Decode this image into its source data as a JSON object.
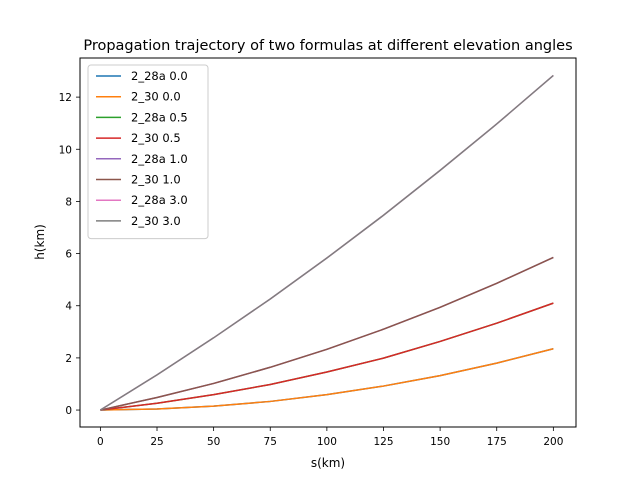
{
  "chart_data": {
    "type": "line",
    "title": "Propagation trajectory of two formulas at different elevation angles",
    "xlabel": "s(km)",
    "ylabel": "h(km)",
    "xlim": [
      -9,
      210
    ],
    "ylim": [
      -0.65,
      13.5
    ],
    "xticks": [
      0,
      25,
      50,
      75,
      100,
      125,
      150,
      175,
      200
    ],
    "yticks": [
      0,
      2,
      4,
      6,
      8,
      10,
      12
    ],
    "grid": false,
    "legend_position": "top-left",
    "x": [
      0,
      25,
      50,
      75,
      100,
      125,
      150,
      175,
      200
    ],
    "series": [
      {
        "name": "2_28a 0.0",
        "color": "#1f77b4",
        "values": [
          0,
          0.04,
          0.15,
          0.33,
          0.59,
          0.92,
          1.32,
          1.8,
          2.35
        ]
      },
      {
        "name": "2_30 0.0",
        "color": "#ff7f0e",
        "values": [
          0,
          0.04,
          0.15,
          0.33,
          0.59,
          0.92,
          1.32,
          1.8,
          2.35
        ]
      },
      {
        "name": "2_28a 0.5",
        "color": "#2ca02c",
        "values": [
          0,
          0.26,
          0.59,
          0.98,
          1.46,
          1.99,
          2.63,
          3.33,
          4.1
        ]
      },
      {
        "name": "2_30 0.5",
        "color": "#d62728",
        "values": [
          0,
          0.26,
          0.59,
          0.98,
          1.46,
          1.99,
          2.63,
          3.33,
          4.1
        ]
      },
      {
        "name": "2_28a 1.0",
        "color": "#9467bd",
        "values": [
          0,
          0.48,
          1.02,
          1.64,
          2.33,
          3.1,
          3.94,
          4.86,
          5.85
        ]
      },
      {
        "name": "2_30 1.0",
        "color": "#8c564b",
        "values": [
          0,
          0.48,
          1.02,
          1.64,
          2.33,
          3.1,
          3.94,
          4.86,
          5.85
        ]
      },
      {
        "name": "2_28a 3.0",
        "color": "#e377c2",
        "values": [
          0,
          1.35,
          2.77,
          4.26,
          5.83,
          7.47,
          9.19,
          10.97,
          12.83
        ]
      },
      {
        "name": "2_30 3.0",
        "color": "#7f7f7f",
        "values": [
          0,
          1.35,
          2.77,
          4.26,
          5.83,
          7.47,
          9.19,
          10.97,
          12.83
        ]
      }
    ]
  }
}
